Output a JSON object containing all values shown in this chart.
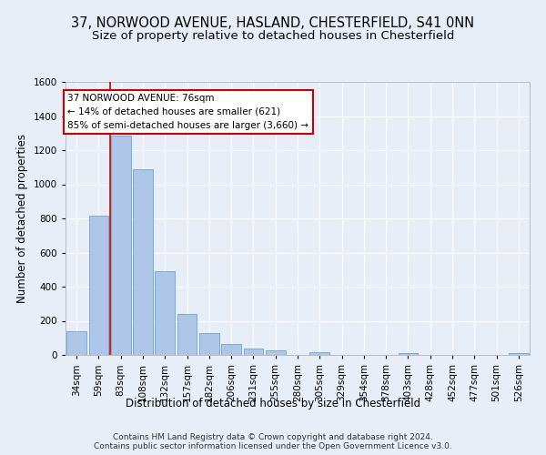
{
  "title_line1": "37, NORWOOD AVENUE, HASLAND, CHESTERFIELD, S41 0NN",
  "title_line2": "Size of property relative to detached houses in Chesterfield",
  "xlabel": "Distribution of detached houses by size in Chesterfield",
  "ylabel": "Number of detached properties",
  "footnote": "Contains HM Land Registry data © Crown copyright and database right 2024.\nContains public sector information licensed under the Open Government Licence v3.0.",
  "bar_labels": [
    "34sqm",
    "59sqm",
    "83sqm",
    "108sqm",
    "132sqm",
    "157sqm",
    "182sqm",
    "206sqm",
    "231sqm",
    "255sqm",
    "280sqm",
    "305sqm",
    "329sqm",
    "354sqm",
    "378sqm",
    "403sqm",
    "428sqm",
    "452sqm",
    "477sqm",
    "501sqm",
    "526sqm"
  ],
  "bar_values": [
    140,
    815,
    1285,
    1090,
    490,
    238,
    128,
    65,
    38,
    27,
    0,
    18,
    0,
    0,
    0,
    10,
    0,
    0,
    0,
    0,
    13
  ],
  "bar_color": "#aec6e8",
  "bar_edge_color": "#7aadd4",
  "highlight_color": "#cc0000",
  "ylim": [
    0,
    1600
  ],
  "yticks": [
    0,
    200,
    400,
    600,
    800,
    1000,
    1200,
    1400,
    1600
  ],
  "annotation_text_line1": "37 NORWOOD AVENUE: 76sqm",
  "annotation_text_line2": "← 14% of detached houses are smaller (621)",
  "annotation_text_line3": "85% of semi-detached houses are larger (3,660) →",
  "property_line_x": 1.5,
  "background_color": "#e8eef8",
  "grid_color": "#ffffff",
  "title_fontsize": 10.5,
  "subtitle_fontsize": 9.5,
  "axis_label_fontsize": 8.5,
  "tick_fontsize": 7.5,
  "annotation_fontsize": 7.5,
  "footnote_fontsize": 6.5
}
